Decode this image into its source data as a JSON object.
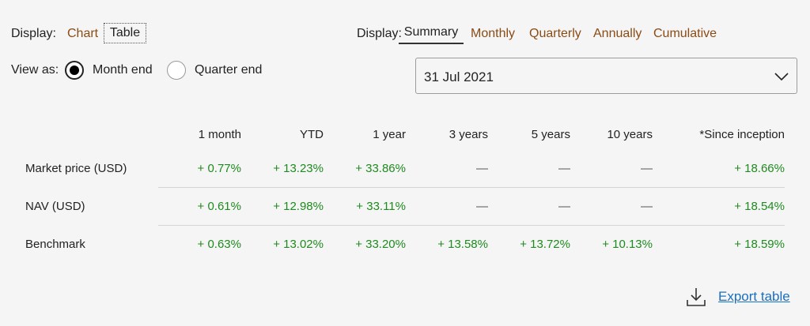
{
  "display_left": {
    "label": "Display:",
    "options": [
      "Chart",
      "Table"
    ],
    "selected": "Table"
  },
  "display_right": {
    "label": "Display:",
    "options": [
      "Summary",
      "Monthly",
      "Quarterly",
      "Annually",
      "Cumulative"
    ],
    "selected": "Summary"
  },
  "view_as": {
    "label": "View as:",
    "options": [
      "Month end",
      "Quarter end"
    ],
    "selected": "Month end"
  },
  "date_select": {
    "value": "31 Jul 2021"
  },
  "table": {
    "headers": [
      "1 month",
      "YTD",
      "1 year",
      "3 years",
      "5 years",
      "10 years",
      "*Since inception"
    ],
    "rows": [
      {
        "label": "Market price (USD)",
        "cells": [
          "+ 0.77%",
          "+ 13.23%",
          "+ 33.86%",
          "—",
          "—",
          "—",
          "+ 18.66%"
        ]
      },
      {
        "label": "NAV (USD)",
        "cells": [
          "+ 0.61%",
          "+ 12.98%",
          "+ 33.11%",
          "—",
          "—",
          "—",
          "+ 18.54%"
        ]
      },
      {
        "label": "Benchmark",
        "cells": [
          "+ 0.63%",
          "+ 13.02%",
          "+ 33.20%",
          "+ 13.58%",
          "+ 13.72%",
          "+ 10.13%",
          "+ 18.59%"
        ]
      }
    ]
  },
  "export": {
    "label": "Export table"
  },
  "colors": {
    "positive": "#1f8a1f",
    "link": "#8a4b14",
    "export_link": "#1a6fc0",
    "background": "#f5f5f5"
  },
  "icons": {
    "chevron": "chevron-down-icon",
    "export": "download-icon"
  }
}
